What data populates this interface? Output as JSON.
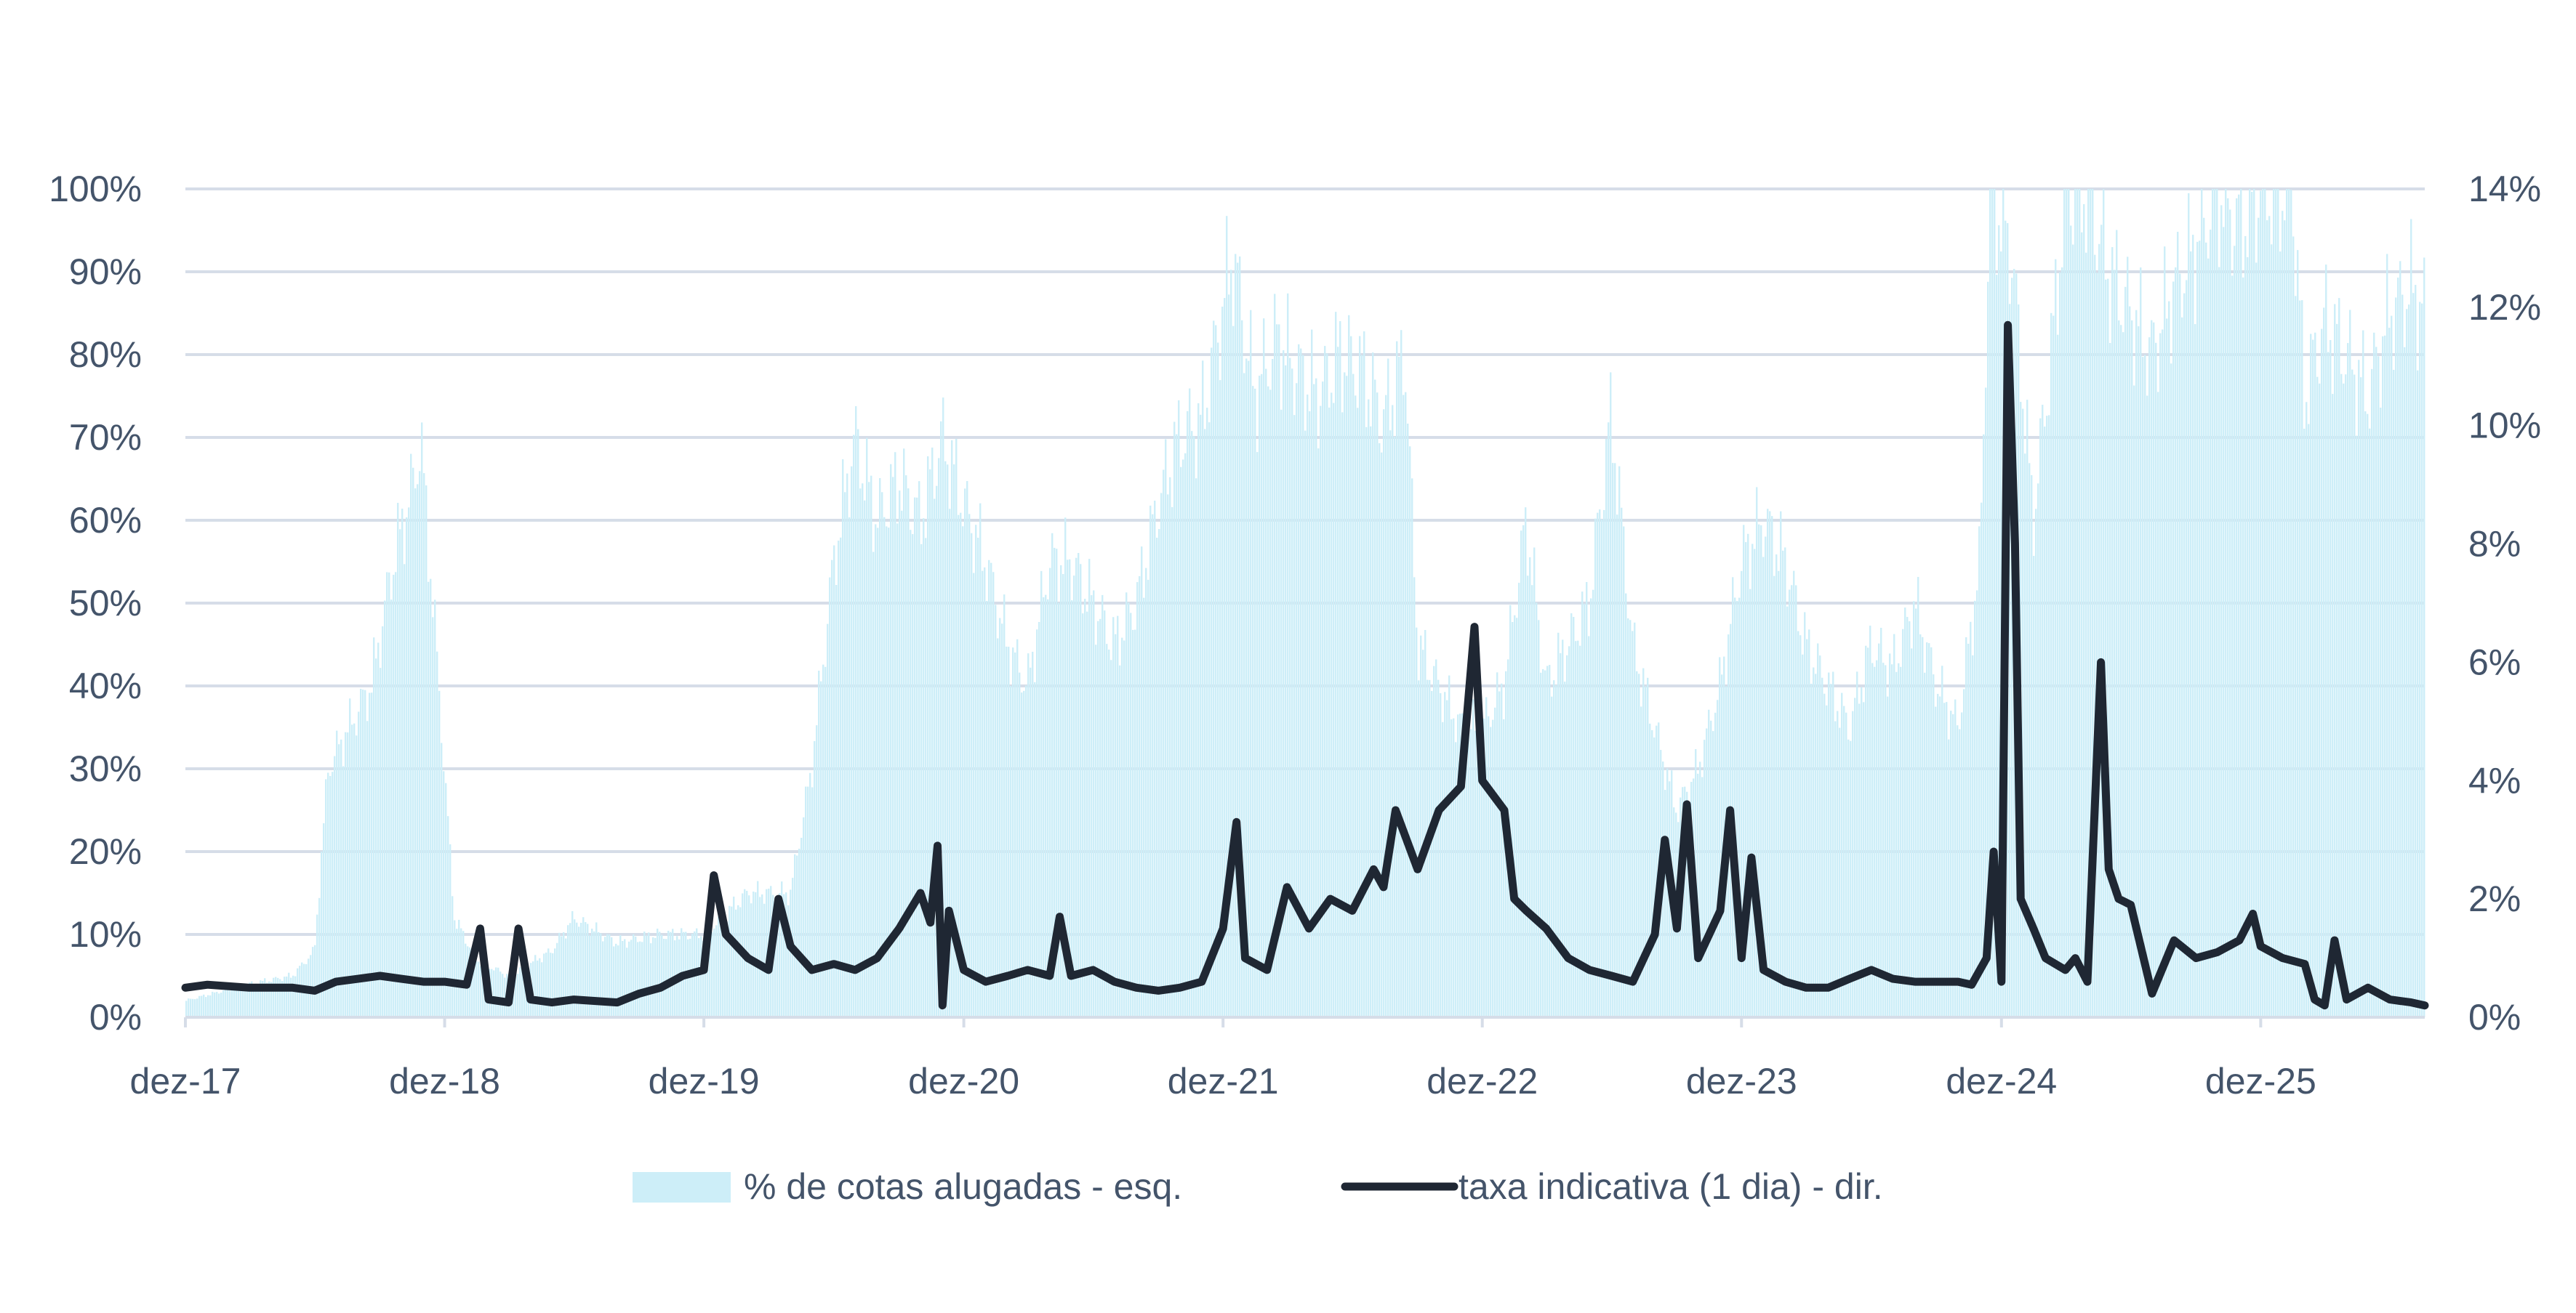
{
  "chart_data": {
    "type": "bar+line",
    "title": "",
    "x_range": [
      "2017-12-01",
      "2026-07-20"
    ],
    "x_tick_labels": [
      "dez-17",
      "dez-18",
      "dez-19",
      "dez-20",
      "dez-21",
      "dez-22",
      "dez-23",
      "dez-24",
      "dez-25"
    ],
    "y_left": {
      "range": [
        0,
        100
      ],
      "ticks": [
        "0%",
        "10%",
        "20%",
        "30%",
        "40%",
        "50%",
        "60%",
        "70%",
        "80%",
        "90%",
        "100%"
      ]
    },
    "y_right": {
      "range": [
        0,
        14
      ],
      "ticks": [
        "0%",
        "2%",
        "4%",
        "6%",
        "8%",
        "10%",
        "12%",
        "14%"
      ]
    },
    "grid": true,
    "legend_position": "bottom",
    "colors": {
      "bars": "#cdeef8",
      "line": "#1f2733",
      "grid": "#d6dde8",
      "text": "#44546a"
    },
    "series": [
      {
        "name": "% de cotas alugadas - esq.",
        "axis": "left",
        "kind": "bar",
        "points": [
          [
            "2017-12-01",
            2
          ],
          [
            "2018-01-15",
            3
          ],
          [
            "2018-03-01",
            4
          ],
          [
            "2018-05-01",
            5
          ],
          [
            "2018-06-01",
            8
          ],
          [
            "2018-06-20",
            30
          ],
          [
            "2018-07-20",
            35
          ],
          [
            "2018-08-20",
            40
          ],
          [
            "2018-09-20",
            55
          ],
          [
            "2018-10-20",
            65
          ],
          [
            "2018-10-28",
            70
          ],
          [
            "2018-11-15",
            50
          ],
          [
            "2018-12-01",
            30
          ],
          [
            "2018-12-15",
            12
          ],
          [
            "2019-01-15",
            7
          ],
          [
            "2019-03-01",
            5
          ],
          [
            "2019-05-01",
            8
          ],
          [
            "2019-06-01",
            12
          ],
          [
            "2019-08-01",
            9
          ],
          [
            "2019-10-01",
            10
          ],
          [
            "2019-12-01",
            10
          ],
          [
            "2020-02-01",
            15
          ],
          [
            "2020-04-01",
            15
          ],
          [
            "2020-05-01",
            30
          ],
          [
            "2020-06-01",
            55
          ],
          [
            "2020-07-01",
            70
          ],
          [
            "2020-08-01",
            60
          ],
          [
            "2020-09-01",
            65
          ],
          [
            "2020-10-01",
            60
          ],
          [
            "2020-11-01",
            70
          ],
          [
            "2020-12-01",
            62
          ],
          [
            "2021-01-01",
            55
          ],
          [
            "2021-02-01",
            45
          ],
          [
            "2021-03-01",
            40
          ],
          [
            "2021-04-01",
            55
          ],
          [
            "2021-05-01",
            55
          ],
          [
            "2021-06-01",
            50
          ],
          [
            "2021-07-01",
            45
          ],
          [
            "2021-08-01",
            50
          ],
          [
            "2021-09-01",
            62
          ],
          [
            "2021-10-01",
            70
          ],
          [
            "2021-11-01",
            72
          ],
          [
            "2021-12-15",
            92
          ],
          [
            "2022-01-15",
            75
          ],
          [
            "2022-02-15",
            82
          ],
          [
            "2022-03-15",
            78
          ],
          [
            "2022-04-15",
            75
          ],
          [
            "2022-05-15",
            80
          ],
          [
            "2022-06-15",
            78
          ],
          [
            "2022-07-15",
            72
          ],
          [
            "2022-08-15",
            80
          ],
          [
            "2022-09-01",
            45
          ],
          [
            "2022-10-01",
            40
          ],
          [
            "2022-11-01",
            35
          ],
          [
            "2022-12-01",
            35
          ],
          [
            "2023-01-01",
            40
          ],
          [
            "2023-02-01",
            60
          ],
          [
            "2023-03-01",
            40
          ],
          [
            "2023-04-01",
            45
          ],
          [
            "2023-05-01",
            50
          ],
          [
            "2023-06-01",
            73
          ],
          [
            "2023-07-01",
            45
          ],
          [
            "2023-08-01",
            35
          ],
          [
            "2023-09-01",
            25
          ],
          [
            "2023-10-01",
            30
          ],
          [
            "2023-11-01",
            40
          ],
          [
            "2023-12-01",
            55
          ],
          [
            "2024-01-01",
            60
          ],
          [
            "2024-02-01",
            55
          ],
          [
            "2024-03-01",
            45
          ],
          [
            "2024-04-01",
            40
          ],
          [
            "2024-05-01",
            35
          ],
          [
            "2024-06-01",
            45
          ],
          [
            "2024-07-01",
            42
          ],
          [
            "2024-08-01",
            50
          ],
          [
            "2024-09-01",
            40
          ],
          [
            "2024-10-01",
            35
          ],
          [
            "2024-11-01",
            55
          ],
          [
            "2024-11-15",
            100
          ],
          [
            "2024-12-15",
            93
          ],
          [
            "2025-01-15",
            60
          ],
          [
            "2025-02-15",
            85
          ],
          [
            "2025-03-01",
            100
          ],
          [
            "2025-04-01",
            100
          ],
          [
            "2025-05-01",
            90
          ],
          [
            "2025-06-01",
            85
          ],
          [
            "2025-07-01",
            80
          ],
          [
            "2025-08-01",
            88
          ],
          [
            "2025-09-01",
            93
          ],
          [
            "2025-10-01",
            100
          ],
          [
            "2025-11-01",
            95
          ],
          [
            "2025-12-01",
            100
          ],
          [
            "2026-01-15",
            100
          ],
          [
            "2026-02-01",
            75
          ],
          [
            "2026-03-01",
            84
          ],
          [
            "2026-04-01",
            80
          ],
          [
            "2026-05-01",
            75
          ],
          [
            "2026-06-01",
            85
          ],
          [
            "2026-07-01",
            88
          ],
          [
            "2026-07-20",
            85
          ]
        ]
      },
      {
        "name": "taxa indicativa (1 dia) - dir.",
        "axis": "right",
        "kind": "line",
        "points": [
          [
            "2017-12-01",
            0.5
          ],
          [
            "2018-01-01",
            0.55
          ],
          [
            "2018-03-01",
            0.5
          ],
          [
            "2018-05-01",
            0.5
          ],
          [
            "2018-06-01",
            0.45
          ],
          [
            "2018-07-01",
            0.6
          ],
          [
            "2018-08-01",
            0.65
          ],
          [
            "2018-09-01",
            0.7
          ],
          [
            "2018-10-01",
            0.65
          ],
          [
            "2018-11-01",
            0.6
          ],
          [
            "2018-12-01",
            0.6
          ],
          [
            "2019-01-01",
            0.55
          ],
          [
            "2019-01-20",
            1.5
          ],
          [
            "2019-02-01",
            0.3
          ],
          [
            "2019-03-01",
            0.25
          ],
          [
            "2019-03-15",
            1.5
          ],
          [
            "2019-04-01",
            0.3
          ],
          [
            "2019-05-01",
            0.25
          ],
          [
            "2019-06-01",
            0.3
          ],
          [
            "2019-08-01",
            0.25
          ],
          [
            "2019-09-01",
            0.4
          ],
          [
            "2019-10-01",
            0.5
          ],
          [
            "2019-11-01",
            0.7
          ],
          [
            "2019-12-01",
            0.8
          ],
          [
            "2019-12-15",
            2.4
          ],
          [
            "2020-01-01",
            1.4
          ],
          [
            "2020-02-01",
            1.0
          ],
          [
            "2020-03-01",
            0.8
          ],
          [
            "2020-03-15",
            2.0
          ],
          [
            "2020-04-01",
            1.2
          ],
          [
            "2020-05-01",
            0.8
          ],
          [
            "2020-06-01",
            0.9
          ],
          [
            "2020-07-01",
            0.8
          ],
          [
            "2020-08-01",
            1.0
          ],
          [
            "2020-09-01",
            1.5
          ],
          [
            "2020-10-01",
            2.1
          ],
          [
            "2020-10-15",
            1.6
          ],
          [
            "2020-10-25",
            2.9
          ],
          [
            "2020-11-01",
            0.2
          ],
          [
            "2020-11-10",
            1.8
          ],
          [
            "2020-12-01",
            0.8
          ],
          [
            "2021-01-01",
            0.6
          ],
          [
            "2021-02-01",
            0.7
          ],
          [
            "2021-03-01",
            0.8
          ],
          [
            "2021-04-01",
            0.7
          ],
          [
            "2021-04-15",
            1.7
          ],
          [
            "2021-05-01",
            0.7
          ],
          [
            "2021-06-01",
            0.8
          ],
          [
            "2021-07-01",
            0.6
          ],
          [
            "2021-08-01",
            0.5
          ],
          [
            "2021-09-01",
            0.45
          ],
          [
            "2021-10-01",
            0.5
          ],
          [
            "2021-11-01",
            0.6
          ],
          [
            "2021-12-01",
            1.5
          ],
          [
            "2021-12-20",
            3.3
          ],
          [
            "2022-01-01",
            1.0
          ],
          [
            "2022-02-01",
            0.8
          ],
          [
            "2022-03-01",
            2.2
          ],
          [
            "2022-04-01",
            1.5
          ],
          [
            "2022-05-01",
            2.0
          ],
          [
            "2022-06-01",
            1.8
          ],
          [
            "2022-07-01",
            2.5
          ],
          [
            "2022-07-15",
            2.2
          ],
          [
            "2022-08-01",
            3.5
          ],
          [
            "2022-09-01",
            2.5
          ],
          [
            "2022-10-01",
            3.5
          ],
          [
            "2022-11-01",
            3.9
          ],
          [
            "2022-11-20",
            6.6
          ],
          [
            "2022-12-01",
            4.0
          ],
          [
            "2023-01-01",
            3.5
          ],
          [
            "2023-01-15",
            2.0
          ],
          [
            "2023-02-01",
            1.8
          ],
          [
            "2023-03-01",
            1.5
          ],
          [
            "2023-04-01",
            1.0
          ],
          [
            "2023-05-01",
            0.8
          ],
          [
            "2023-06-01",
            0.7
          ],
          [
            "2023-07-01",
            0.6
          ],
          [
            "2023-08-01",
            1.4
          ],
          [
            "2023-08-15",
            3.0
          ],
          [
            "2023-09-01",
            1.5
          ],
          [
            "2023-09-15",
            3.6
          ],
          [
            "2023-10-01",
            1.0
          ],
          [
            "2023-11-01",
            1.8
          ],
          [
            "2023-11-15",
            3.5
          ],
          [
            "2023-12-01",
            1.0
          ],
          [
            "2023-12-15",
            2.7
          ],
          [
            "2024-01-01",
            0.8
          ],
          [
            "2024-02-01",
            0.6
          ],
          [
            "2024-03-01",
            0.5
          ],
          [
            "2024-04-01",
            0.5
          ],
          [
            "2024-05-01",
            0.65
          ],
          [
            "2024-06-01",
            0.8
          ],
          [
            "2024-07-01",
            0.65
          ],
          [
            "2024-08-01",
            0.6
          ],
          [
            "2024-09-01",
            0.6
          ],
          [
            "2024-10-01",
            0.6
          ],
          [
            "2024-10-20",
            0.55
          ],
          [
            "2024-11-10",
            1.0
          ],
          [
            "2024-11-20",
            2.8
          ],
          [
            "2024-12-01",
            0.6
          ],
          [
            "2024-12-10",
            11.7
          ],
          [
            "2024-12-20",
            8.0
          ],
          [
            "2024-12-28",
            2.0
          ],
          [
            "2025-01-15",
            1.5
          ],
          [
            "2025-02-01",
            1.0
          ],
          [
            "2025-03-01",
            0.8
          ],
          [
            "2025-03-15",
            1.0
          ],
          [
            "2025-04-01",
            0.6
          ],
          [
            "2025-04-20",
            6.0
          ],
          [
            "2025-05-01",
            2.5
          ],
          [
            "2025-05-15",
            2.0
          ],
          [
            "2025-06-01",
            1.9
          ],
          [
            "2025-07-01",
            0.4
          ],
          [
            "2025-08-01",
            1.3
          ],
          [
            "2025-09-01",
            1.0
          ],
          [
            "2025-10-01",
            1.1
          ],
          [
            "2025-11-01",
            1.3
          ],
          [
            "2025-11-20",
            1.75
          ],
          [
            "2025-12-01",
            1.2
          ],
          [
            "2026-01-01",
            1.0
          ],
          [
            "2026-02-01",
            0.9
          ],
          [
            "2026-02-15",
            0.3
          ],
          [
            "2026-03-01",
            0.2
          ],
          [
            "2026-03-15",
            1.3
          ],
          [
            "2026-04-01",
            0.3
          ],
          [
            "2026-05-01",
            0.5
          ],
          [
            "2026-06-01",
            0.3
          ],
          [
            "2026-07-01",
            0.25
          ],
          [
            "2026-07-20",
            0.2
          ]
        ]
      }
    ]
  }
}
